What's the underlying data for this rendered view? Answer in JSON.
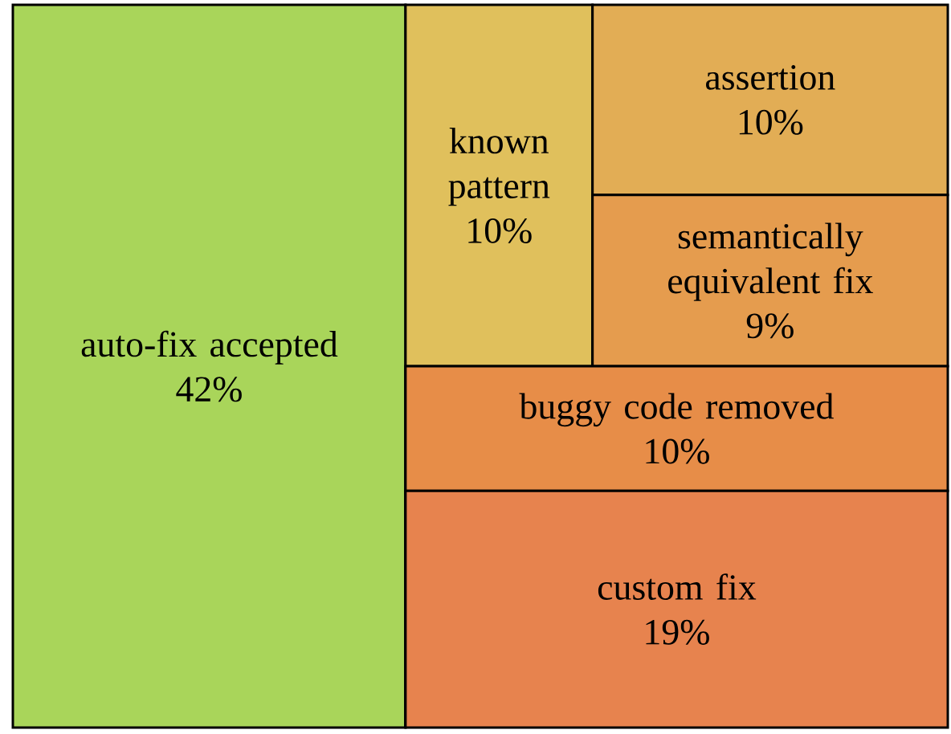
{
  "chart_data": {
    "type": "other",
    "categories": [
      "auto-fix accepted",
      "known pattern",
      "assertion",
      "semantically equivalent fix",
      "buggy code removed",
      "custom fix"
    ],
    "values": [
      42,
      10,
      10,
      9,
      10,
      19
    ],
    "colors": [
      "#a9d55a",
      "#e0c05c",
      "#e2ad55",
      "#e59c4e",
      "#e78d48",
      "#e7834e"
    ],
    "value_labels": [
      "42%",
      "10%",
      "10%",
      "9%",
      "10%",
      "19%"
    ]
  }
}
